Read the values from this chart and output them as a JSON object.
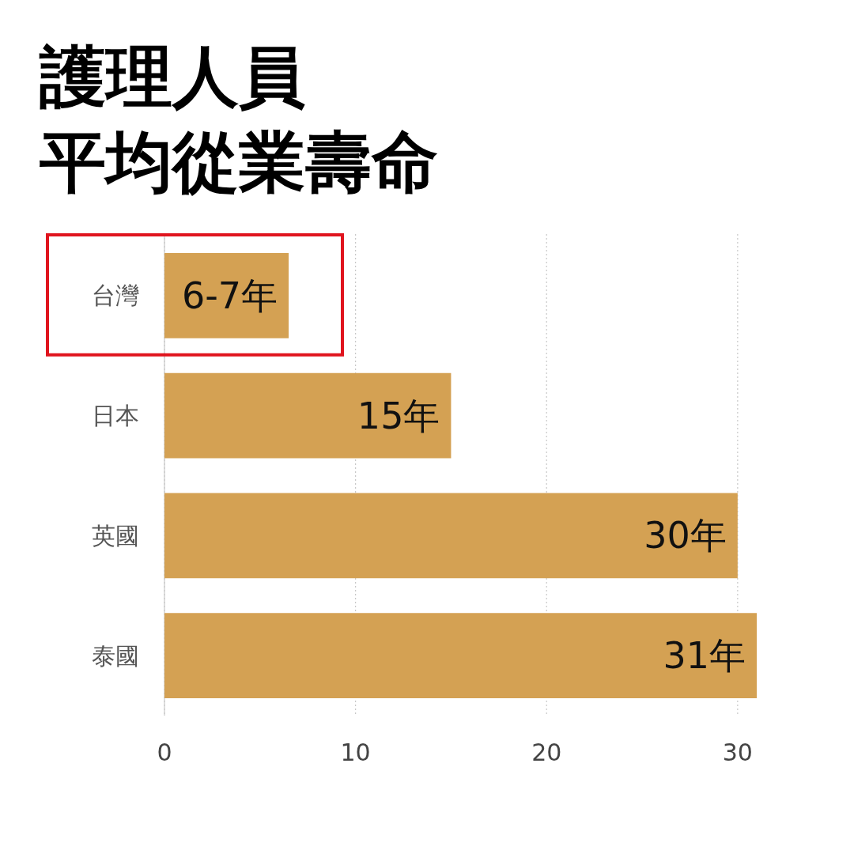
{
  "chart_data": {
    "type": "bar",
    "title": "護理人員",
    "subtitle": "平均從業壽命",
    "orientation": "horizontal",
    "categories": [
      "台灣",
      "日本",
      "英國",
      "泰國"
    ],
    "values": [
      6.5,
      15,
      30,
      31
    ],
    "value_labels": [
      "6-7年",
      "15年",
      "30年",
      "31年"
    ],
    "color": "#d4a153",
    "xlim": [
      0,
      31
    ],
    "xticks": [
      0,
      10,
      20,
      30
    ],
    "grid": "x"
  }
}
